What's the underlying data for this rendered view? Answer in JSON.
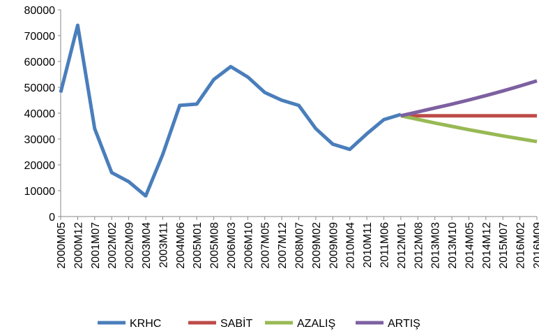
{
  "chart_data": {
    "type": "line",
    "categories": [
      "2000M05",
      "2000M12",
      "2001M07",
      "2002M02",
      "2002M09",
      "2003M04",
      "2003M11",
      "2004M06",
      "2005M01",
      "2005M08",
      "2006M03",
      "2006M10",
      "2007M05",
      "2007M12",
      "2008M07",
      "2009M02",
      "2009M09",
      "2010M04",
      "2010M11",
      "2011M06",
      "2012M01",
      "2012M08",
      "2013M03",
      "2013M10",
      "2014M05",
      "2014M12",
      "2015M07",
      "2016M02",
      "2016M09"
    ],
    "series": [
      {
        "name": "KRHC",
        "color": "#4a7ebb",
        "values": [
          48000,
          74000,
          34000,
          17000,
          13500,
          8000,
          24000,
          43000,
          43500,
          53000,
          58000,
          54000,
          48000,
          45000,
          43000,
          34000,
          28000,
          26000,
          32000,
          37500,
          39500,
          null,
          null,
          null,
          null,
          null,
          null,
          null,
          null
        ]
      },
      {
        "name": "SABİT",
        "color": "#be4b48",
        "values": [
          null,
          null,
          null,
          null,
          null,
          null,
          null,
          null,
          null,
          null,
          null,
          null,
          null,
          null,
          null,
          null,
          null,
          null,
          null,
          null,
          39000,
          39000,
          39000,
          39000,
          39000,
          39000,
          39000,
          39000,
          39000
        ]
      },
      {
        "name": "AZALIŞ",
        "color": "#98b954",
        "values": [
          null,
          null,
          null,
          null,
          null,
          null,
          null,
          null,
          null,
          null,
          null,
          null,
          null,
          null,
          null,
          null,
          null,
          null,
          null,
          null,
          39000,
          37600,
          36200,
          34900,
          33600,
          32400,
          31200,
          30100,
          29000
        ]
      },
      {
        "name": "ARTIŞ",
        "color": "#7d60a0",
        "values": [
          null,
          null,
          null,
          null,
          null,
          null,
          null,
          null,
          null,
          null,
          null,
          null,
          null,
          null,
          null,
          null,
          null,
          null,
          null,
          null,
          39000,
          40500,
          42000,
          43500,
          45100,
          46800,
          48600,
          50500,
          52500
        ]
      }
    ],
    "ylim": [
      0,
      80000
    ],
    "yticks": [
      0,
      10000,
      20000,
      30000,
      40000,
      50000,
      60000,
      70000,
      80000
    ],
    "legend": "bottom"
  }
}
